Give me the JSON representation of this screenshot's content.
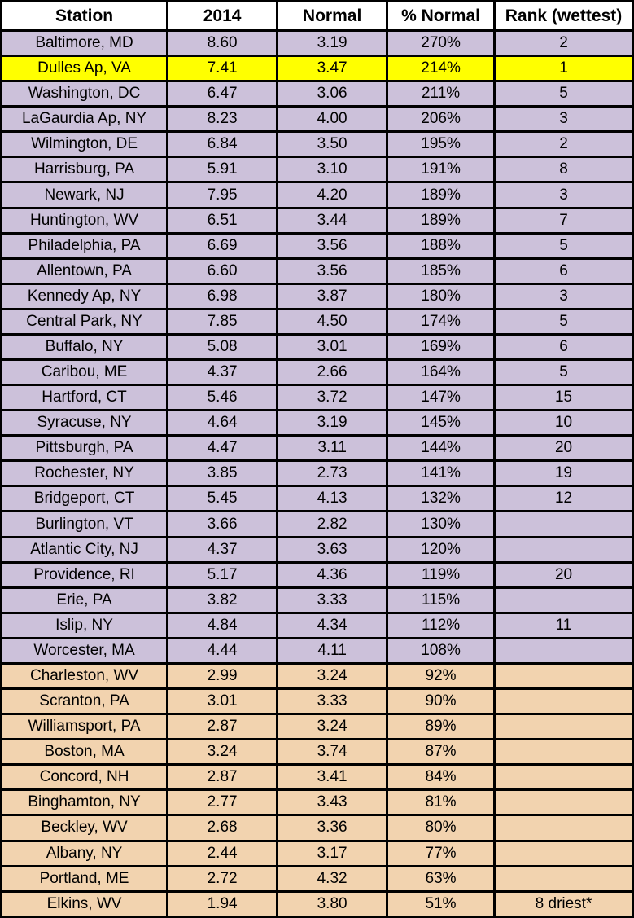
{
  "colors": {
    "above_normal_fill": "#CCC1DA",
    "highlight_fill": "#FFFF00",
    "below_normal_fill": "#F2D3AF",
    "border": "#000000",
    "header_fill": "#FFFFFF",
    "text": "#000000"
  },
  "chart_data": {
    "type": "table",
    "columns": [
      "Station",
      "2014",
      "Normal",
      "% Normal",
      "Rank (wettest)"
    ],
    "rows": [
      {
        "station": "Baltimore, MD",
        "v2014": "8.60",
        "normal": "3.19",
        "pct_normal": "270%",
        "rank": "2",
        "highlight": "purple"
      },
      {
        "station": "Dulles Ap, VA",
        "v2014": "7.41",
        "normal": "3.47",
        "pct_normal": "214%",
        "rank": "1",
        "highlight": "yellow"
      },
      {
        "station": "Washington, DC",
        "v2014": "6.47",
        "normal": "3.06",
        "pct_normal": "211%",
        "rank": "5",
        "highlight": "purple"
      },
      {
        "station": "LaGaurdia Ap, NY",
        "v2014": "8.23",
        "normal": "4.00",
        "pct_normal": "206%",
        "rank": "3",
        "highlight": "purple"
      },
      {
        "station": "Wilmington, DE",
        "v2014": "6.84",
        "normal": "3.50",
        "pct_normal": "195%",
        "rank": "2",
        "highlight": "purple"
      },
      {
        "station": "Harrisburg, PA",
        "v2014": "5.91",
        "normal": "3.10",
        "pct_normal": "191%",
        "rank": "8",
        "highlight": "purple"
      },
      {
        "station": "Newark, NJ",
        "v2014": "7.95",
        "normal": "4.20",
        "pct_normal": "189%",
        "rank": "3",
        "highlight": "purple"
      },
      {
        "station": "Huntington, WV",
        "v2014": "6.51",
        "normal": "3.44",
        "pct_normal": "189%",
        "rank": "7",
        "highlight": "purple"
      },
      {
        "station": "Philadelphia, PA",
        "v2014": "6.69",
        "normal": "3.56",
        "pct_normal": "188%",
        "rank": "5",
        "highlight": "purple"
      },
      {
        "station": "Allentown, PA",
        "v2014": "6.60",
        "normal": "3.56",
        "pct_normal": "185%",
        "rank": "6",
        "highlight": "purple"
      },
      {
        "station": "Kennedy Ap, NY",
        "v2014": "6.98",
        "normal": "3.87",
        "pct_normal": "180%",
        "rank": "3",
        "highlight": "purple"
      },
      {
        "station": "Central Park, NY",
        "v2014": "7.85",
        "normal": "4.50",
        "pct_normal": "174%",
        "rank": "5",
        "highlight": "purple"
      },
      {
        "station": "Buffalo, NY",
        "v2014": "5.08",
        "normal": "3.01",
        "pct_normal": "169%",
        "rank": "6",
        "highlight": "purple"
      },
      {
        "station": "Caribou, ME",
        "v2014": "4.37",
        "normal": "2.66",
        "pct_normal": "164%",
        "rank": "5",
        "highlight": "purple"
      },
      {
        "station": "Hartford, CT",
        "v2014": "5.46",
        "normal": "3.72",
        "pct_normal": "147%",
        "rank": "15",
        "highlight": "purple"
      },
      {
        "station": "Syracuse, NY",
        "v2014": "4.64",
        "normal": "3.19",
        "pct_normal": "145%",
        "rank": "10",
        "highlight": "purple"
      },
      {
        "station": "Pittsburgh, PA",
        "v2014": "4.47",
        "normal": "3.11",
        "pct_normal": "144%",
        "rank": "20",
        "highlight": "purple"
      },
      {
        "station": "Rochester, NY",
        "v2014": "3.85",
        "normal": "2.73",
        "pct_normal": "141%",
        "rank": "19",
        "highlight": "purple"
      },
      {
        "station": "Bridgeport, CT",
        "v2014": "5.45",
        "normal": "4.13",
        "pct_normal": "132%",
        "rank": "12",
        "highlight": "purple"
      },
      {
        "station": "Burlington, VT",
        "v2014": "3.66",
        "normal": "2.82",
        "pct_normal": "130%",
        "rank": "",
        "highlight": "purple"
      },
      {
        "station": "Atlantic City, NJ",
        "v2014": "4.37",
        "normal": "3.63",
        "pct_normal": "120%",
        "rank": "",
        "highlight": "purple"
      },
      {
        "station": "Providence, RI",
        "v2014": "5.17",
        "normal": "4.36",
        "pct_normal": "119%",
        "rank": "20",
        "highlight": "purple"
      },
      {
        "station": "Erie, PA",
        "v2014": "3.82",
        "normal": "3.33",
        "pct_normal": "115%",
        "rank": "",
        "highlight": "purple"
      },
      {
        "station": "Islip, NY",
        "v2014": "4.84",
        "normal": "4.34",
        "pct_normal": "112%",
        "rank": "11",
        "highlight": "purple"
      },
      {
        "station": "Worcester, MA",
        "v2014": "4.44",
        "normal": "4.11",
        "pct_normal": "108%",
        "rank": "",
        "highlight": "purple"
      },
      {
        "station": "Charleston, WV",
        "v2014": "2.99",
        "normal": "3.24",
        "pct_normal": "92%",
        "rank": "",
        "highlight": "orange"
      },
      {
        "station": "Scranton, PA",
        "v2014": "3.01",
        "normal": "3.33",
        "pct_normal": "90%",
        "rank": "",
        "highlight": "orange"
      },
      {
        "station": "Williamsport, PA",
        "v2014": "2.87",
        "normal": "3.24",
        "pct_normal": "89%",
        "rank": "",
        "highlight": "orange"
      },
      {
        "station": "Boston, MA",
        "v2014": "3.24",
        "normal": "3.74",
        "pct_normal": "87%",
        "rank": "",
        "highlight": "orange"
      },
      {
        "station": "Concord, NH",
        "v2014": "2.87",
        "normal": "3.41",
        "pct_normal": "84%",
        "rank": "",
        "highlight": "orange"
      },
      {
        "station": "Binghamton, NY",
        "v2014": "2.77",
        "normal": "3.43",
        "pct_normal": "81%",
        "rank": "",
        "highlight": "orange"
      },
      {
        "station": "Beckley, WV",
        "v2014": "2.68",
        "normal": "3.36",
        "pct_normal": "80%",
        "rank": "",
        "highlight": "orange"
      },
      {
        "station": "Albany, NY",
        "v2014": "2.44",
        "normal": "3.17",
        "pct_normal": "77%",
        "rank": "",
        "highlight": "orange"
      },
      {
        "station": "Portland, ME",
        "v2014": "2.72",
        "normal": "4.32",
        "pct_normal": "63%",
        "rank": "",
        "highlight": "orange"
      },
      {
        "station": "Elkins, WV",
        "v2014": "1.94",
        "normal": "3.80",
        "pct_normal": "51%",
        "rank": "8 driest*",
        "highlight": "orange"
      }
    ]
  }
}
